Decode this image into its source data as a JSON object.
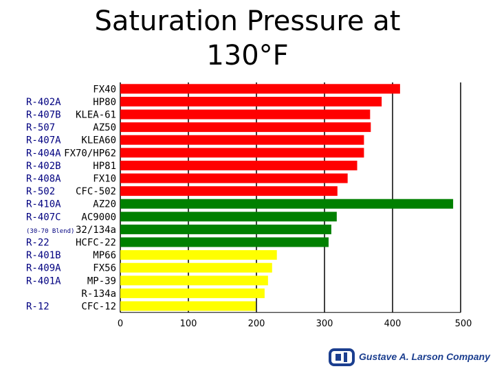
{
  "title_line1": "Saturation Pressure at",
  "title_line2": "130°F",
  "company": "Gustave A. Larson Company",
  "colors": {
    "red": "#ff0000",
    "green": "#008000",
    "yellow": "#ffff00",
    "left_label_color": "#000080"
  },
  "chart_data": {
    "type": "bar",
    "orientation": "horizontal",
    "title": "Saturation Pressure at 130°F",
    "xlim": [
      0,
      500
    ],
    "xticks": [
      0,
      100,
      200,
      300,
      400,
      500
    ],
    "grid": "vertical",
    "categories": [
      "FX40",
      "HP80",
      "KLEA-61",
      "AZ50",
      "KLEA60",
      "FX70/HP62",
      "HP81",
      "FX10",
      "CFC-502",
      "AZ20",
      "AC9000",
      "32/134a",
      "HCFC-22",
      "MP66",
      "FX56",
      "MP-39",
      "R-134a",
      "CFC-12"
    ],
    "values": [
      411,
      384,
      367,
      368,
      358,
      358,
      348,
      334,
      319,
      489,
      318,
      310,
      306,
      230,
      223,
      217,
      212,
      199
    ],
    "bar_colors": [
      "red",
      "red",
      "red",
      "red",
      "red",
      "red",
      "red",
      "red",
      "red",
      "green",
      "green",
      "green",
      "green",
      "yellow",
      "yellow",
      "yellow",
      "yellow",
      "yellow"
    ],
    "left_labels": [
      {
        "row": 1,
        "text": "R-402A"
      },
      {
        "row": 2,
        "text": "R-407B"
      },
      {
        "row": 3,
        "text": "R-507"
      },
      {
        "row": 4,
        "text": "R-407A"
      },
      {
        "row": 5,
        "text": "R-404A"
      },
      {
        "row": 6,
        "text": "R-402B"
      },
      {
        "row": 7,
        "text": "R-408A"
      },
      {
        "row": 8,
        "text": "R-502"
      },
      {
        "row": 9,
        "text": "R-410A"
      },
      {
        "row": 10,
        "text": "R-407C"
      },
      {
        "row": 11,
        "text": "(30-70 Blend)",
        "small": true
      },
      {
        "row": 12,
        "text": "R-22"
      },
      {
        "row": 13,
        "text": "R-401B"
      },
      {
        "row": 14,
        "text": "R-409A"
      },
      {
        "row": 15,
        "text": "R-401A"
      },
      {
        "row": 17,
        "text": "R-12"
      }
    ]
  }
}
